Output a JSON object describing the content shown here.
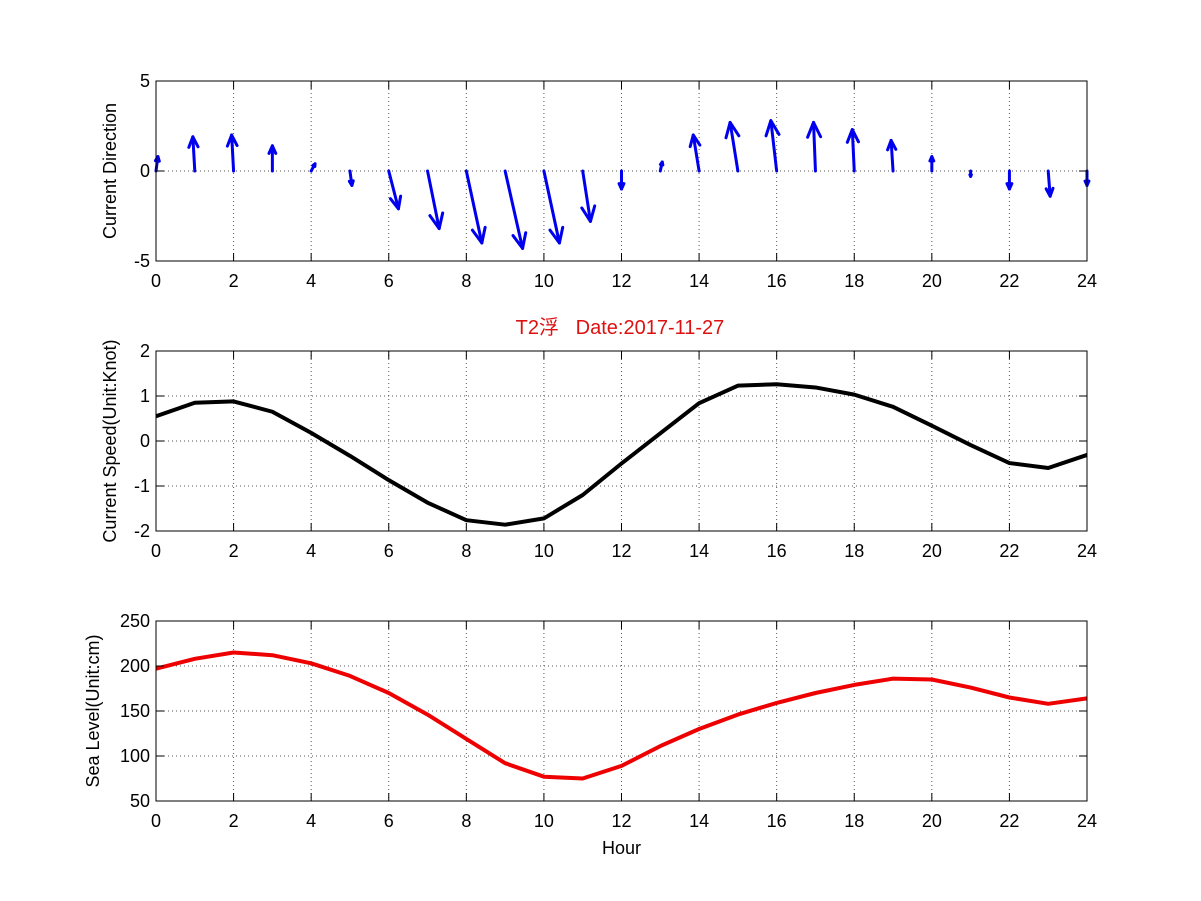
{
  "figure_title": "T2浮   Date:2017-11-27",
  "colors": {
    "title": "#dd1111",
    "direction": "#0000ee",
    "speed": "#000000",
    "sea_level": "#ee0000",
    "grid": "#555555"
  },
  "chart_data": [
    {
      "type": "quiver",
      "ylabel": "Current Direction",
      "xlabel": "",
      "xlim": [
        0,
        24
      ],
      "ylim": [
        -5,
        5
      ],
      "xticks": [
        "0",
        "2",
        "4",
        "6",
        "8",
        "10",
        "12",
        "14",
        "16",
        "18",
        "20",
        "22",
        "24"
      ],
      "yticks": [
        "-5",
        "0",
        "5"
      ],
      "grid": true,
      "vectors": [
        {
          "x": 0,
          "u": 0.05,
          "v": 0.8
        },
        {
          "x": 1,
          "u": -0.05,
          "v": 1.9
        },
        {
          "x": 2,
          "u": -0.05,
          "v": 2.0
        },
        {
          "x": 3,
          "u": 0.0,
          "v": 1.4
        },
        {
          "x": 4,
          "u": 0.1,
          "v": 0.4
        },
        {
          "x": 5,
          "u": 0.05,
          "v": -0.8
        },
        {
          "x": 6,
          "u": 0.25,
          "v": -2.1
        },
        {
          "x": 7,
          "u": 0.3,
          "v": -3.2
        },
        {
          "x": 8,
          "u": 0.4,
          "v": -4.0
        },
        {
          "x": 9,
          "u": 0.45,
          "v": -4.3
        },
        {
          "x": 10,
          "u": 0.4,
          "v": -4.0
        },
        {
          "x": 11,
          "u": 0.2,
          "v": -2.8
        },
        {
          "x": 12,
          "u": 0.0,
          "v": -1.0
        },
        {
          "x": 13,
          "u": 0.05,
          "v": 0.5
        },
        {
          "x": 14,
          "u": -0.15,
          "v": 2.0
        },
        {
          "x": 15,
          "u": -0.2,
          "v": 2.7
        },
        {
          "x": 16,
          "u": -0.15,
          "v": 2.8
        },
        {
          "x": 17,
          "u": -0.05,
          "v": 2.7
        },
        {
          "x": 18,
          "u": -0.05,
          "v": 2.3
        },
        {
          "x": 19,
          "u": -0.05,
          "v": 1.7
        },
        {
          "x": 20,
          "u": 0.0,
          "v": 0.8
        },
        {
          "x": 21,
          "u": 0.0,
          "v": -0.3
        },
        {
          "x": 22,
          "u": 0.0,
          "v": -1.0
        },
        {
          "x": 23,
          "u": 0.05,
          "v": -1.4
        },
        {
          "x": 24,
          "u": 0.0,
          "v": -0.8
        }
      ]
    },
    {
      "type": "line",
      "ylabel": "Current Speed(Unit:Knot)",
      "xlabel": "",
      "xlim": [
        0,
        24
      ],
      "ylim": [
        -2,
        2
      ],
      "xticks": [
        "0",
        "2",
        "4",
        "6",
        "8",
        "10",
        "12",
        "14",
        "16",
        "18",
        "20",
        "22",
        "24"
      ],
      "yticks": [
        "-2",
        "-1",
        "0",
        "1",
        "2"
      ],
      "grid": true,
      "x": [
        0,
        1,
        2,
        3,
        4,
        5,
        6,
        7,
        8,
        9,
        10,
        11,
        12,
        13,
        14,
        15,
        16,
        17,
        18,
        19,
        20,
        21,
        22,
        23,
        24
      ],
      "series": [
        {
          "values": [
            0.55,
            0.85,
            0.88,
            0.65,
            0.18,
            -0.33,
            -0.87,
            -1.37,
            -1.76,
            -1.86,
            -1.72,
            -1.2,
            -0.5,
            0.17,
            0.84,
            1.23,
            1.26,
            1.19,
            1.03,
            0.76,
            0.34,
            -0.09,
            -0.49,
            -0.6,
            -0.31
          ]
        }
      ]
    },
    {
      "type": "line",
      "ylabel": "Sea Level(Unit:cm)",
      "xlabel": "Hour",
      "xlim": [
        0,
        24
      ],
      "ylim": [
        50,
        250
      ],
      "xticks": [
        "0",
        "2",
        "4",
        "6",
        "8",
        "10",
        "12",
        "14",
        "16",
        "18",
        "20",
        "22",
        "24"
      ],
      "yticks": [
        "50",
        "100",
        "150",
        "200",
        "250"
      ],
      "grid": true,
      "x": [
        0,
        1,
        2,
        3,
        4,
        5,
        6,
        7,
        8,
        9,
        10,
        11,
        12,
        13,
        14,
        15,
        16,
        17,
        18,
        19,
        20,
        21,
        22,
        23,
        24
      ],
      "series": [
        {
          "values": [
            197,
            208,
            215,
            212,
            203,
            189,
            170,
            146,
            119,
            92,
            77,
            75,
            89,
            111,
            130,
            146,
            159,
            170,
            179,
            186,
            185,
            176,
            165,
            158,
            164
          ]
        }
      ]
    }
  ]
}
